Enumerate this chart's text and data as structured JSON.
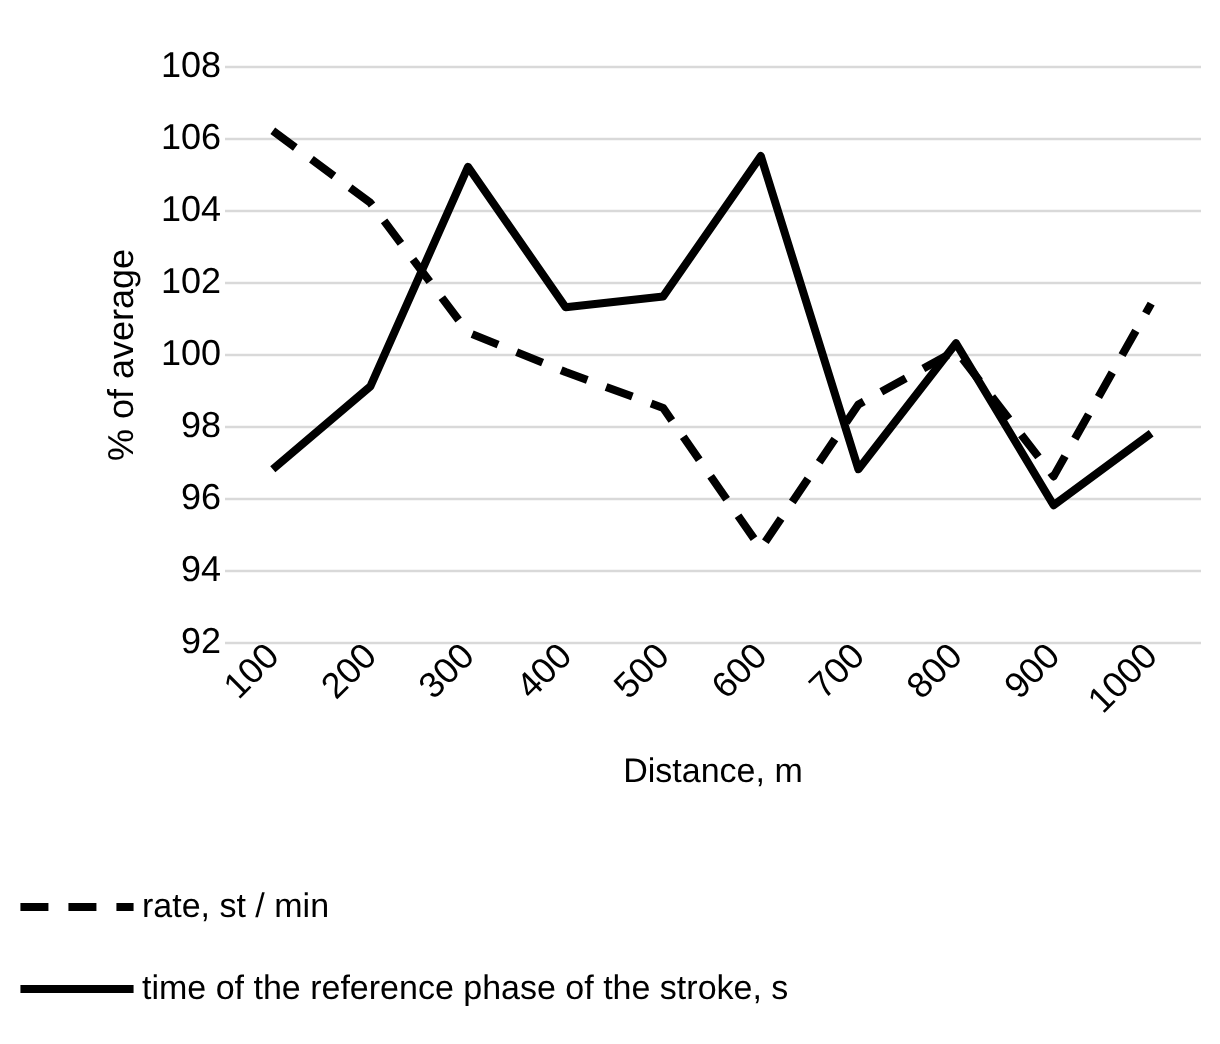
{
  "chart_data": {
    "type": "line",
    "xlabel": "Distance, m",
    "ylabel": "% of average",
    "categories": [
      "100",
      "200",
      "300",
      "400",
      "500",
      "600",
      "700",
      "800",
      "900",
      "1000"
    ],
    "series": [
      {
        "name": "rate, st / min",
        "color": "#000000",
        "line_style": "dashed",
        "values": [
          106.2,
          104.2,
          100.6,
          99.5,
          98.5,
          94.6,
          98.6,
          100.1,
          96.6,
          101.4
        ]
      },
      {
        "name": "time of the reference phase of the stroke, s",
        "color": "#000000",
        "line_style": "solid",
        "values": [
          96.8,
          99.1,
          105.2,
          101.3,
          101.6,
          105.5,
          96.8,
          100.3,
          95.8,
          97.8
        ]
      }
    ],
    "ylim": [
      92,
      108
    ],
    "yticks": [
      92,
      94,
      96,
      98,
      100,
      102,
      104,
      106,
      108
    ],
    "grid": "y",
    "legend": "bottom"
  }
}
